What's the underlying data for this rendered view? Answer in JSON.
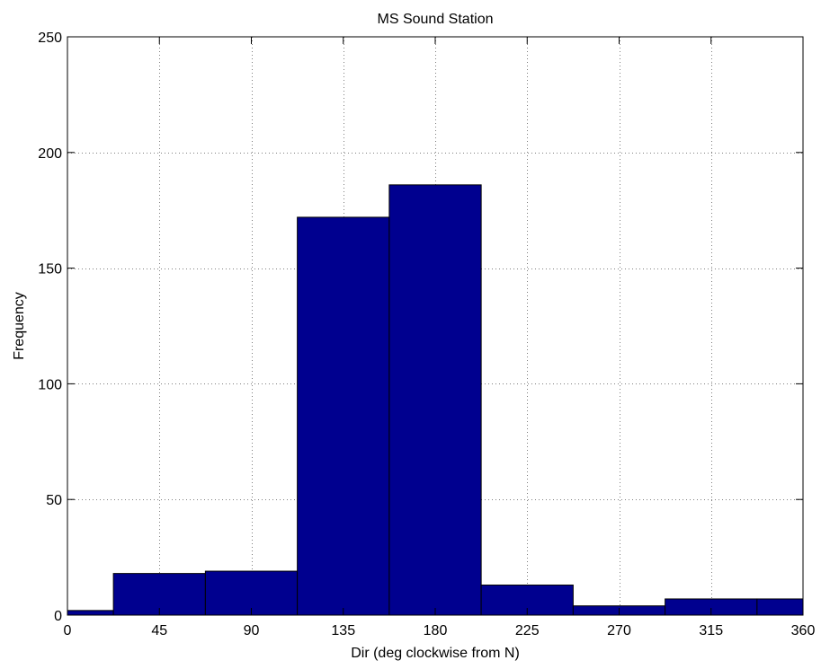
{
  "chart_data": {
    "type": "bar",
    "title": "MS Sound Station",
    "xlabel": "Dir (deg clockwise from N)",
    "ylabel": "Frequency",
    "xlim": [
      0,
      360
    ],
    "ylim": [
      0,
      250
    ],
    "xticks": [
      0,
      45,
      90,
      135,
      180,
      225,
      270,
      315,
      360
    ],
    "yticks": [
      0,
      50,
      100,
      150,
      200,
      250
    ],
    "grid": true,
    "bar_color": "#00008f",
    "bins": [
      {
        "start": 0,
        "end": 22.5,
        "count": 2
      },
      {
        "start": 22.5,
        "end": 67.5,
        "count": 18
      },
      {
        "start": 67.5,
        "end": 112.5,
        "count": 19
      },
      {
        "start": 112.5,
        "end": 157.5,
        "count": 172
      },
      {
        "start": 157.5,
        "end": 202.5,
        "count": 186
      },
      {
        "start": 202.5,
        "end": 247.5,
        "count": 13
      },
      {
        "start": 247.5,
        "end": 292.5,
        "count": 4
      },
      {
        "start": 292.5,
        "end": 337.5,
        "count": 7
      },
      {
        "start": 337.5,
        "end": 360,
        "count": 7
      }
    ]
  }
}
